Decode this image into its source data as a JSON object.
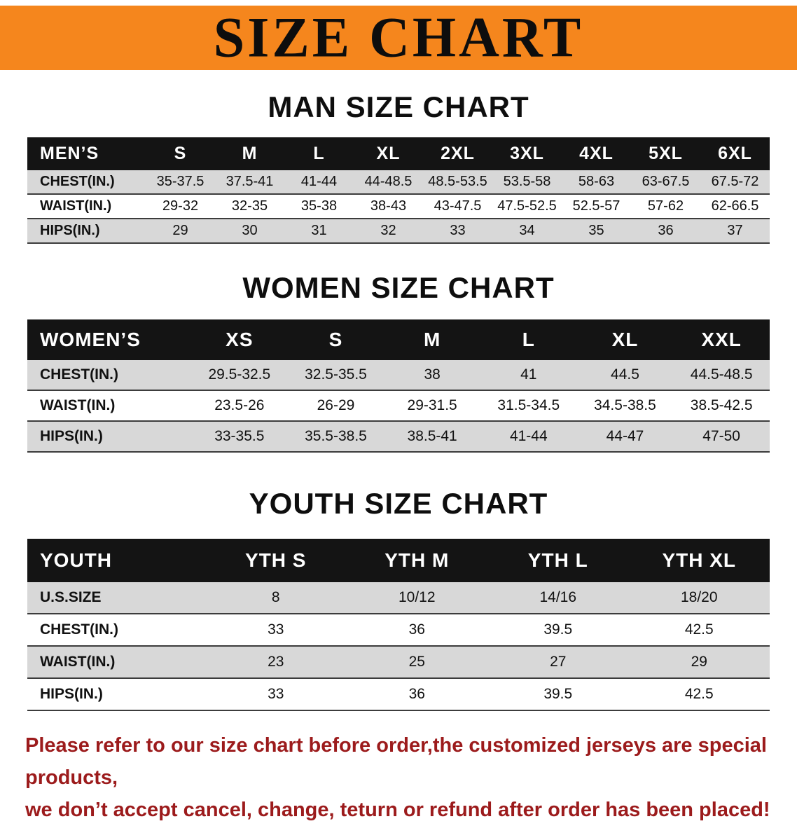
{
  "banner": {
    "title": "SIZE CHART"
  },
  "colors": {
    "banner_bg": "#f5861d",
    "table_header_bg": "#141414",
    "row_shade": "#d8d8d8",
    "disclaimer_text": "#9c1b1c"
  },
  "sections": [
    {
      "id": "men",
      "heading": "MAN SIZE CHART",
      "table": {
        "header": [
          "MEN’S",
          "S",
          "M",
          "L",
          "XL",
          "2XL",
          "3XL",
          "4XL",
          "5XL",
          "6XL"
        ],
        "rows": [
          [
            "CHEST(IN.)",
            "35-37.5",
            "37.5-41",
            "41-44",
            "44-48.5",
            "48.5-53.5",
            "53.5-58",
            "58-63",
            "63-67.5",
            "67.5-72"
          ],
          [
            "WAIST(IN.)",
            "29-32",
            "32-35",
            "35-38",
            "38-43",
            "43-47.5",
            "47.5-52.5",
            "52.5-57",
            "57-62",
            "62-66.5"
          ],
          [
            "HIPS(IN.)",
            "29",
            "30",
            "31",
            "32",
            "33",
            "34",
            "35",
            "36",
            "37"
          ]
        ]
      }
    },
    {
      "id": "women",
      "heading": "WOMEN SIZE CHART",
      "table": {
        "header": [
          "WOMEN’S",
          "XS",
          "S",
          "M",
          "L",
          "XL",
          "XXL"
        ],
        "rows": [
          [
            "CHEST(IN.)",
            "29.5-32.5",
            "32.5-35.5",
            "38",
            "41",
            "44.5",
            "44.5-48.5"
          ],
          [
            "WAIST(IN.)",
            "23.5-26",
            "26-29",
            "29-31.5",
            "31.5-34.5",
            "34.5-38.5",
            "38.5-42.5"
          ],
          [
            "HIPS(IN.)",
            "33-35.5",
            "35.5-38.5",
            "38.5-41",
            "41-44",
            "44-47",
            "47-50"
          ]
        ]
      }
    },
    {
      "id": "youth",
      "heading": "YOUTH SIZE CHART",
      "table": {
        "header": [
          "YOUTH",
          "YTH S",
          "YTH M",
          "YTH L",
          "YTH XL"
        ],
        "rows": [
          [
            "U.S.SIZE",
            "8",
            "10/12",
            "14/16",
            "18/20"
          ],
          [
            "CHEST(IN.)",
            "33",
            "36",
            "39.5",
            "42.5"
          ],
          [
            "WAIST(IN.)",
            "23",
            "25",
            "27",
            "29"
          ],
          [
            "HIPS(IN.)",
            "33",
            "36",
            "39.5",
            "42.5"
          ]
        ]
      }
    }
  ],
  "disclaimer": {
    "line1": "Please refer to our size chart before order,the customized jerseys are special products,",
    "line2": "we don’t accept cancel, change, teturn or refund after order has been placed!"
  }
}
